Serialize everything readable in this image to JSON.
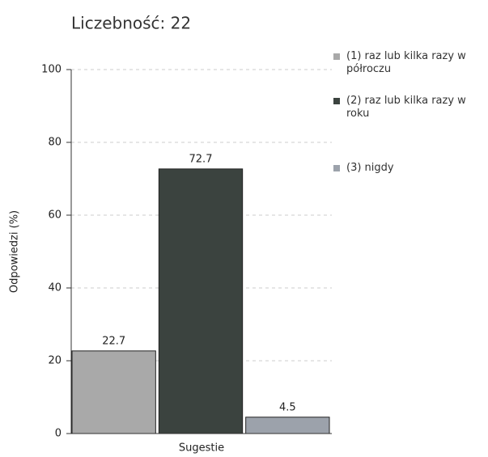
{
  "chart_data": {
    "type": "bar",
    "title": "Liczebność: 22",
    "ylabel": "Odpowiedzi (%)",
    "categories": [
      "Sugestie"
    ],
    "series": [
      {
        "name": "(1) raz lub kilka razy w półroczu",
        "color": "#a9a9a9",
        "values": [
          22.7
        ]
      },
      {
        "name": "(2) raz lub kilka razy w roku",
        "color": "#3b433f",
        "values": [
          72.7
        ]
      },
      {
        "name": "(3) nigdy",
        "color": "#9ca2ab",
        "values": [
          4.5
        ]
      }
    ],
    "ylim": [
      0,
      100
    ],
    "yticks": [
      0,
      20,
      40,
      60,
      80,
      100
    ],
    "grid": true,
    "legend": "right"
  }
}
